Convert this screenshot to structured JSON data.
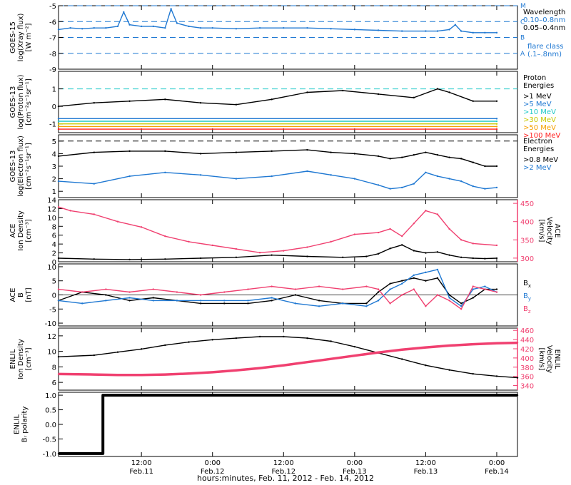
{
  "chart_data": {
    "type": "line",
    "x_axis": {
      "title": "hours:minutes, Feb. 11, 2012 - Feb. 14, 2012",
      "range_hours": [
        -2,
        75.5
      ],
      "ticks": [
        {
          "hour": 12,
          "time": "12:00",
          "date": "Feb.11"
        },
        {
          "hour": 24,
          "time": "0:00",
          "date": "Feb.12"
        },
        {
          "hour": 36,
          "time": "12:00",
          "date": "Feb.12"
        },
        {
          "hour": 48,
          "time": "0:00",
          "date": "Feb.13"
        },
        {
          "hour": 60,
          "time": "12:00",
          "date": "Feb.13"
        },
        {
          "hour": 72,
          "time": "0:00",
          "date": "Feb.14"
        }
      ]
    },
    "panels": [
      {
        "id": "xray",
        "ylabel": [
          "GOES-15",
          "log(Xray flux)",
          "[W m⁻²]"
        ],
        "ylim": [
          -9,
          -5
        ],
        "yticks": [
          -9,
          -8,
          -7,
          -6,
          -5
        ],
        "ytick_labels": [
          "-9",
          "-8",
          "-7",
          "-6",
          "-5"
        ],
        "right_ticks": [
          {
            "value": -8,
            "label": "A"
          },
          {
            "value": -7,
            "label": "B"
          },
          {
            "value": -6,
            "label": "C"
          },
          {
            "value": -5,
            "label": "M"
          }
        ],
        "legend_title": "Wavelength",
        "legend": [
          {
            "label": "0.10–0.8nm",
            "color": "#1f78d2"
          },
          {
            "label": "0.05–0.4nm",
            "color": "#000000"
          }
        ],
        "legend_note": [
          "flare class",
          "(.1–.8nm)"
        ],
        "series": [
          {
            "label": "0.10–0.8nm",
            "color": "#1f78d2",
            "t": [
              -2,
              0,
              2,
              4,
              6,
              8,
              9,
              10,
              12,
              14,
              16,
              17,
              18,
              20,
              22,
              24,
              28,
              32,
              36,
              40,
              44,
              48,
              52,
              56,
              60,
              62,
              64,
              65,
              66,
              68,
              70,
              72
            ],
            "v": [
              -6.5,
              -6.4,
              -6.45,
              -6.4,
              -6.4,
              -6.3,
              -5.4,
              -6.2,
              -6.3,
              -6.3,
              -6.4,
              -5.2,
              -6.1,
              -6.3,
              -6.4,
              -6.4,
              -6.45,
              -6.4,
              -6.4,
              -6.4,
              -6.45,
              -6.5,
              -6.55,
              -6.6,
              -6.6,
              -6.6,
              -6.5,
              -6.2,
              -6.6,
              -6.7,
              -6.7,
              -6.7
            ]
          }
        ]
      },
      {
        "id": "proton",
        "ylabel": [
          "GOES-13",
          "log(Proton flux)",
          "[cm⁻²s⁻¹sr⁻¹]"
        ],
        "ylim": [
          -1.5,
          2
        ],
        "yticks": [
          -1,
          0,
          1
        ],
        "ytick_labels": [
          "-1",
          "0",
          "1"
        ],
        "legend_title": [
          "Proton",
          "Energies"
        ],
        "legend": [
          {
            "label": ">1 MeV",
            "color": "#000000"
          },
          {
            "label": ">5 MeV",
            "color": "#1f78d2"
          },
          {
            "label": ">10 MeV",
            "color": "#22c9c9"
          },
          {
            "label": ">30 MeV",
            "color": "#c8c800"
          },
          {
            "label": ">50 MeV",
            "color": "#f5a000"
          },
          {
            "label": ">100 MeV",
            "color": "#ff2020"
          }
        ],
        "series": [
          {
            "label": ">1 MeV",
            "color": "#000000",
            "t": [
              -2,
              4,
              10,
              16,
              22,
              28,
              34,
              40,
              46,
              52,
              58,
              62,
              64,
              68,
              72
            ],
            "v": [
              0.0,
              0.2,
              0.3,
              0.4,
              0.2,
              0.1,
              0.4,
              0.8,
              0.9,
              0.7,
              0.5,
              1.0,
              0.8,
              0.3,
              0.3
            ]
          },
          {
            "label": ">5 MeV",
            "color": "#1f78d2",
            "t": [
              -2,
              72
            ],
            "v": [
              -0.7,
              -0.7
            ]
          },
          {
            "label": ">10 MeV",
            "color": "#22c9c9",
            "t": [
              -2,
              72
            ],
            "v": [
              -0.85,
              -0.85
            ]
          },
          {
            "label": ">30 MeV",
            "color": "#c8c800",
            "t": [
              -2,
              72
            ],
            "v": [
              -1.0,
              -1.0
            ]
          },
          {
            "label": ">50 MeV",
            "color": "#f5a000",
            "t": [
              -2,
              72
            ],
            "v": [
              -1.15,
              -1.15
            ]
          },
          {
            "label": ">100 MeV",
            "color": "#ff2020",
            "t": [
              -2,
              72
            ],
            "v": [
              -1.3,
              -1.3
            ]
          }
        ]
      },
      {
        "id": "electron",
        "ylabel": [
          "GOES-13",
          "log(Electron flux)",
          "[cm⁻²s⁻¹sr⁻¹]"
        ],
        "ylim": [
          0.5,
          5.5
        ],
        "yticks": [
          1,
          2,
          3,
          4,
          5
        ],
        "ytick_labels": [
          "1",
          "2",
          "3",
          "4",
          "5"
        ],
        "legend_title": [
          "Electron",
          "Energies"
        ],
        "legend": [
          {
            "label": ">0.8 MeV",
            "color": "#000000"
          },
          {
            "label": ">2 MeV",
            "color": "#1f78d2"
          }
        ],
        "series": [
          {
            "label": ">0.8 MeV",
            "color": "#000000",
            "t": [
              -2,
              4,
              10,
              16,
              22,
              28,
              34,
              40,
              44,
              48,
              52,
              54,
              56,
              58,
              60,
              62,
              64,
              66,
              68,
              70,
              72
            ],
            "v": [
              3.8,
              4.1,
              4.2,
              4.2,
              4.0,
              4.1,
              4.2,
              4.3,
              4.1,
              4.0,
              3.8,
              3.6,
              3.7,
              3.9,
              4.1,
              3.9,
              3.7,
              3.6,
              3.3,
              3.0,
              3.0
            ]
          },
          {
            "label": ">2 MeV",
            "color": "#1f78d2",
            "t": [
              -2,
              4,
              10,
              16,
              22,
              28,
              34,
              40,
              44,
              48,
              52,
              54,
              56,
              58,
              60,
              62,
              64,
              66,
              68,
              70,
              72
            ],
            "v": [
              1.8,
              1.6,
              2.2,
              2.5,
              2.3,
              2.0,
              2.2,
              2.6,
              2.3,
              2.0,
              1.5,
              1.2,
              1.3,
              1.6,
              2.5,
              2.2,
              2.0,
              1.8,
              1.4,
              1.2,
              1.3
            ]
          }
        ]
      },
      {
        "id": "ace_density",
        "ylabel": [
          "ACE",
          "Ion Density",
          "[cm⁻³]"
        ],
        "ylim": [
          0,
          14
        ],
        "yticks": [
          0,
          2,
          4,
          6,
          8,
          10,
          12,
          14
        ],
        "ytick_labels": [
          "0",
          "2",
          "4",
          "6",
          "8",
          "10",
          "12",
          "14"
        ],
        "ylabel_right": [
          "ACE",
          "Velocity",
          "[km/s]"
        ],
        "y2lim": [
          290,
          460
        ],
        "y2ticks": [
          300,
          350,
          400,
          450
        ],
        "y2tick_labels": [
          "300",
          "350",
          "400",
          "450"
        ],
        "series": [
          {
            "label": "ACE Ion Density",
            "color": "#000000",
            "axis": "left",
            "t": [
              -2,
              4,
              10,
              16,
              22,
              28,
              34,
              40,
              46,
              50,
              52,
              54,
              56,
              58,
              60,
              62,
              64,
              66,
              68,
              70,
              72
            ],
            "v": [
              0.8,
              0.6,
              0.5,
              0.6,
              0.8,
              1.0,
              1.5,
              1.2,
              1.0,
              1.2,
              1.8,
              3.0,
              3.8,
              2.5,
              2.0,
              2.2,
              1.5,
              1.0,
              0.8,
              0.7,
              0.8
            ]
          },
          {
            "label": "ACE Velocity",
            "color": "#f04070",
            "axis": "right",
            "t": [
              -2,
              0,
              4,
              8,
              12,
              16,
              20,
              24,
              28,
              32,
              36,
              40,
              44,
              48,
              52,
              54,
              56,
              58,
              60,
              62,
              64,
              66,
              68,
              72
            ],
            "v": [
              440,
              430,
              420,
              400,
              385,
              360,
              345,
              335,
              325,
              315,
              320,
              330,
              345,
              365,
              370,
              380,
              360,
              395,
              430,
              420,
              380,
              350,
              340,
              335
            ]
          }
        ]
      },
      {
        "id": "ace_b",
        "ylabel": [
          "ACE",
          "B",
          "[nT]"
        ],
        "ylim": [
          -11,
          11
        ],
        "yticks": [
          -10,
          -5,
          0,
          5,
          10
        ],
        "ytick_labels": [
          "-10",
          "-5",
          "0",
          "5",
          "10"
        ],
        "legend": [
          {
            "label": "B",
            "sub": "x",
            "color": "#000000"
          },
          {
            "label": "B",
            "sub": "y",
            "color": "#1f78d2"
          },
          {
            "label": "B",
            "sub": "z",
            "color": "#f04070"
          }
        ],
        "series": [
          {
            "label": "Bx",
            "color": "#000000",
            "t": [
              -2,
              2,
              6,
              10,
              14,
              18,
              22,
              26,
              30,
              34,
              38,
              42,
              46,
              50,
              52,
              54,
              56,
              58,
              60,
              62,
              64,
              66,
              68,
              70,
              72
            ],
            "v": [
              -2,
              1,
              0,
              -2,
              -1,
              -2,
              -3,
              -3,
              -3,
              -2,
              0,
              -2,
              -3,
              -3,
              1,
              4,
              5,
              6,
              5,
              6,
              0,
              -3,
              -1,
              2,
              2
            ]
          },
          {
            "label": "By",
            "color": "#1f78d2",
            "t": [
              -2,
              2,
              6,
              10,
              14,
              18,
              22,
              26,
              30,
              34,
              38,
              42,
              46,
              50,
              52,
              54,
              56,
              58,
              60,
              62,
              64,
              66,
              68,
              70,
              72
            ],
            "v": [
              -2,
              -3,
              -2,
              -1,
              -2,
              -2,
              -2,
              -2,
              -2,
              -1,
              -3,
              -4,
              -3,
              -4,
              -2,
              2,
              4,
              7,
              8,
              9,
              -1,
              -4,
              2,
              3,
              1
            ]
          },
          {
            "label": "Bz",
            "color": "#f04070",
            "t": [
              -2,
              2,
              6,
              10,
              14,
              18,
              22,
              26,
              30,
              34,
              38,
              42,
              46,
              50,
              52,
              54,
              56,
              58,
              60,
              62,
              64,
              66,
              68,
              70,
              72
            ],
            "v": [
              2,
              1,
              2,
              1,
              2,
              1,
              0,
              1,
              2,
              3,
              2,
              3,
              2,
              3,
              2,
              -3,
              0,
              2,
              -4,
              0,
              -2,
              -5,
              3,
              2,
              1
            ]
          }
        ]
      },
      {
        "id": "enlil_density",
        "ylabel": [
          "ENLIL",
          "Ion Density",
          "[cm⁻³]"
        ],
        "ylim": [
          5,
          13
        ],
        "yticks": [
          6,
          8,
          10,
          12
        ],
        "ytick_labels": [
          "6",
          "8",
          "10",
          "12"
        ],
        "ylabel_right": [
          "ENLIL",
          "Velocity",
          "[km/s]"
        ],
        "y2lim": [
          330,
          465
        ],
        "y2ticks": [
          340,
          360,
          380,
          400,
          420,
          440,
          460
        ],
        "y2tick_labels": [
          "340",
          "360",
          "380",
          "400",
          "420",
          "440",
          "460"
        ],
        "series": [
          {
            "label": "ENLIL Ion Density",
            "color": "#000000",
            "axis": "left",
            "t": [
              -2,
              4,
              8,
              12,
              16,
              20,
              24,
              28,
              32,
              36,
              40,
              44,
              48,
              52,
              56,
              60,
              64,
              68,
              72,
              75.5
            ],
            "v": [
              9.3,
              9.5,
              9.9,
              10.3,
              10.8,
              11.2,
              11.5,
              11.7,
              11.9,
              11.9,
              11.7,
              11.3,
              10.6,
              9.8,
              9.0,
              8.2,
              7.6,
              7.1,
              6.8,
              6.6
            ]
          },
          {
            "label": "ENLIL Velocity",
            "color": "#f04070",
            "axis": "right",
            "t": [
              -2,
              4,
              8,
              12,
              16,
              20,
              24,
              28,
              32,
              36,
              40,
              44,
              48,
              52,
              56,
              60,
              64,
              68,
              72,
              75.5
            ],
            "v": [
              365,
              364,
              363,
              363,
              364,
              366,
              369,
              373,
              378,
              384,
              391,
              398,
              405,
              412,
              418,
              423,
              427,
              430,
              432,
              433
            ]
          }
        ]
      },
      {
        "id": "enlil_polarity",
        "ylabel": [
          "ENLIL",
          "Bᵣ polarity"
        ],
        "ylim": [
          -1.1,
          1.1
        ],
        "yticks": [
          -1.0,
          -0.5,
          0.0,
          0.5,
          1.0
        ],
        "ytick_labels": [
          "-1.0",
          "-0.5",
          "0.0",
          "0.5",
          "1.0"
        ],
        "series": [
          {
            "label": "Br polarity",
            "color": "#000000",
            "step": true,
            "t": [
              -2,
              5.5,
              5.5,
              75.5
            ],
            "v": [
              -1,
              -1,
              1,
              1
            ]
          }
        ]
      }
    ]
  }
}
